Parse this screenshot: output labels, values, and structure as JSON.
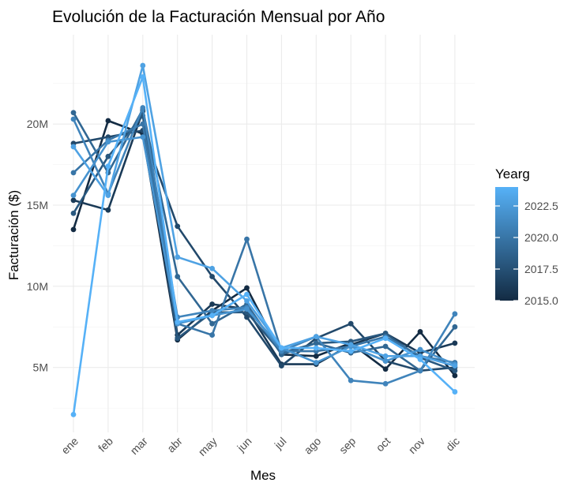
{
  "chart_data": {
    "type": "line",
    "title": "Evolución de la Facturación Mensual por Año",
    "xlabel": "Mes",
    "ylabel": "Facturación ($)",
    "categories": [
      "ene",
      "feb",
      "mar",
      "abr",
      "may",
      "jun",
      "jul",
      "ago",
      "sep",
      "oct",
      "nov",
      "dic"
    ],
    "ylim": [
      1000000,
      25500000
    ],
    "yticks": [
      5000000,
      10000000,
      15000000,
      20000000
    ],
    "ytick_labels": [
      "5M",
      "10M",
      "15M",
      "20M"
    ],
    "grid": true,
    "legend": {
      "title": "Yearg",
      "position": "right",
      "type": "colorbar",
      "range": [
        2015,
        2024
      ],
      "ticks": [
        2015,
        2017.5,
        2020,
        2022.5
      ],
      "tick_labels": [
        "2015.0",
        "2017.5",
        "2020.0",
        "2022.5"
      ],
      "color_low": "#132B43",
      "color_high": "#56B1F7"
    },
    "series": [
      {
        "year": 2015,
        "values": [
          13500000,
          20200000,
          19400000,
          6700000,
          8500000,
          9900000,
          5800000,
          5700000,
          6500000,
          4900000,
          7200000,
          4500000
        ]
      },
      {
        "year": 2016,
        "values": [
          15300000,
          14700000,
          20800000,
          7000000,
          8900000,
          8600000,
          5200000,
          5200000,
          6400000,
          7100000,
          5900000,
          6500000
        ]
      },
      {
        "year": 2017,
        "values": [
          18800000,
          19200000,
          19600000,
          13700000,
          10600000,
          8100000,
          5100000,
          6800000,
          7700000,
          5400000,
          4800000,
          5000000
        ]
      },
      {
        "year": 2018,
        "values": [
          14500000,
          18000000,
          20500000,
          6800000,
          8400000,
          8400000,
          5900000,
          6500000,
          6600000,
          7100000,
          5600000,
          4800000
        ]
      },
      {
        "year": 2019,
        "values": [
          20700000,
          17000000,
          20900000,
          10600000,
          7700000,
          8900000,
          5800000,
          6500000,
          5900000,
          6300000,
          4800000,
          7500000
        ]
      },
      {
        "year": 2020,
        "values": [
          17000000,
          19000000,
          20000000,
          7700000,
          7000000,
          12900000,
          6000000,
          6000000,
          6300000,
          6900000,
          5700000,
          5300000
        ]
      },
      {
        "year": 2021,
        "values": [
          20300000,
          15700000,
          21000000,
          8100000,
          8500000,
          8700000,
          6000000,
          6900000,
          4200000,
          4000000,
          4800000,
          8300000
        ]
      },
      {
        "year": 2022,
        "values": [
          15600000,
          18900000,
          19200000,
          7700000,
          8200000,
          8600000,
          6200000,
          5300000,
          6300000,
          5400000,
          6100000,
          5200000
        ]
      },
      {
        "year": 2023,
        "values": [
          18600000,
          15600000,
          23600000,
          11800000,
          11100000,
          9100000,
          6200000,
          6900000,
          6400000,
          5700000,
          5700000,
          5100000
        ]
      },
      {
        "year": 2024,
        "values": [
          2100000,
          17400000,
          22900000,
          7800000,
          8200000,
          9500000,
          6200000,
          6200000,
          6000000,
          6800000,
          5500000,
          3500000
        ]
      }
    ]
  }
}
